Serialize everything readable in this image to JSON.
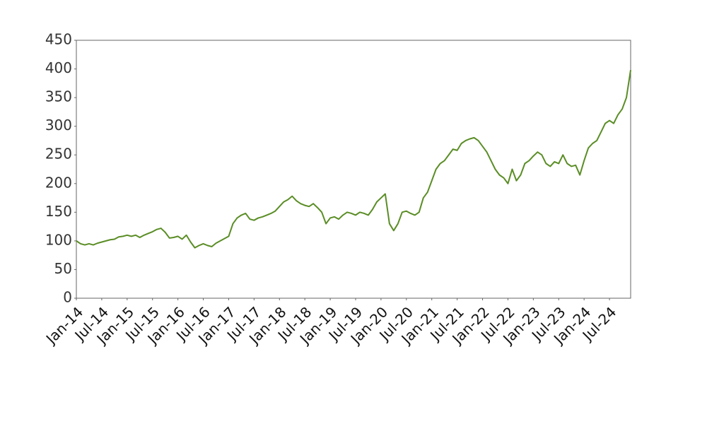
{
  "chart_data": {
    "type": "line",
    "x": [
      "2014-01",
      "2014-02",
      "2014-03",
      "2014-04",
      "2014-05",
      "2014-06",
      "2014-07",
      "2014-08",
      "2014-09",
      "2014-10",
      "2014-11",
      "2014-12",
      "2015-01",
      "2015-02",
      "2015-03",
      "2015-04",
      "2015-05",
      "2015-06",
      "2015-07",
      "2015-08",
      "2015-09",
      "2015-10",
      "2015-11",
      "2015-12",
      "2016-01",
      "2016-02",
      "2016-03",
      "2016-04",
      "2016-05",
      "2016-06",
      "2016-07",
      "2016-08",
      "2016-09",
      "2016-10",
      "2016-11",
      "2016-12",
      "2017-01",
      "2017-02",
      "2017-03",
      "2017-04",
      "2017-05",
      "2017-06",
      "2017-07",
      "2017-08",
      "2017-09",
      "2017-10",
      "2017-11",
      "2017-12",
      "2018-01",
      "2018-02",
      "2018-03",
      "2018-04",
      "2018-05",
      "2018-06",
      "2018-07",
      "2018-08",
      "2018-09",
      "2018-10",
      "2018-11",
      "2018-12",
      "2019-01",
      "2019-02",
      "2019-03",
      "2019-04",
      "2019-05",
      "2019-06",
      "2019-07",
      "2019-08",
      "2019-09",
      "2019-10",
      "2019-11",
      "2019-12",
      "2020-01",
      "2020-02",
      "2020-03",
      "2020-04",
      "2020-05",
      "2020-06",
      "2020-07",
      "2020-08",
      "2020-09",
      "2020-10",
      "2020-11",
      "2020-12",
      "2021-01",
      "2021-02",
      "2021-03",
      "2021-04",
      "2021-05",
      "2021-06",
      "2021-07",
      "2021-08",
      "2021-09",
      "2021-10",
      "2021-11",
      "2021-12",
      "2022-01",
      "2022-02",
      "2022-03",
      "2022-04",
      "2022-05",
      "2022-06",
      "2022-07",
      "2022-08",
      "2022-09",
      "2022-10",
      "2022-11",
      "2022-12",
      "2023-01",
      "2023-02",
      "2023-03",
      "2023-04",
      "2023-05",
      "2023-06",
      "2023-07",
      "2023-08",
      "2023-09",
      "2023-10",
      "2023-11",
      "2023-12",
      "2024-01",
      "2024-02",
      "2024-03",
      "2024-04",
      "2024-05",
      "2024-06",
      "2024-07",
      "2024-08",
      "2024-09",
      "2024-10",
      "2024-11",
      "2024-12"
    ],
    "series": [
      {
        "color": "#5a8d25",
        "values": [
          100,
          95,
          93,
          95,
          93,
          96,
          98,
          100,
          102,
          103,
          107,
          108,
          110,
          108,
          110,
          106,
          110,
          113,
          116,
          120,
          122,
          115,
          105,
          106,
          108,
          103,
          110,
          98,
          88,
          92,
          95,
          92,
          90,
          96,
          100,
          104,
          108,
          130,
          140,
          145,
          148,
          138,
          136,
          140,
          142,
          145,
          148,
          152,
          160,
          168,
          172,
          178,
          170,
          165,
          162,
          160,
          165,
          158,
          150,
          130,
          140,
          142,
          138,
          145,
          150,
          148,
          145,
          150,
          148,
          145,
          155,
          168,
          175,
          182,
          130,
          118,
          130,
          150,
          152,
          148,
          145,
          150,
          175,
          185,
          205,
          225,
          235,
          240,
          250,
          260,
          258,
          270,
          275,
          278,
          280,
          275,
          265,
          255,
          240,
          225,
          215,
          210,
          200,
          225,
          205,
          215,
          235,
          240,
          248,
          255,
          250,
          235,
          230,
          238,
          235,
          250,
          235,
          230,
          232,
          215,
          240,
          262,
          270,
          275,
          290,
          305,
          310,
          305,
          320,
          330,
          350,
          398
        ]
      }
    ],
    "xlim": [
      "2014-01",
      "2024-12"
    ],
    "xticks": [
      {
        "value": "2014-01",
        "label": "Jan-14"
      },
      {
        "value": "2014-07",
        "label": "Jul-14"
      },
      {
        "value": "2015-01",
        "label": "Jan-15"
      },
      {
        "value": "2015-07",
        "label": "Jul-15"
      },
      {
        "value": "2016-01",
        "label": "Jan-16"
      },
      {
        "value": "2016-07",
        "label": "Jul-16"
      },
      {
        "value": "2017-01",
        "label": "Jan-17"
      },
      {
        "value": "2017-07",
        "label": "Jul-17"
      },
      {
        "value": "2018-01",
        "label": "Jan-18"
      },
      {
        "value": "2018-07",
        "label": "Jul-18"
      },
      {
        "value": "2019-01",
        "label": "Jan-19"
      },
      {
        "value": "2019-07",
        "label": "Jul-19"
      },
      {
        "value": "2020-01",
        "label": "Jan-20"
      },
      {
        "value": "2020-07",
        "label": "Jul-20"
      },
      {
        "value": "2021-01",
        "label": "Jan-21"
      },
      {
        "value": "2021-07",
        "label": "Jul-21"
      },
      {
        "value": "2022-01",
        "label": "Jan-22"
      },
      {
        "value": "2022-07",
        "label": "Jul-22"
      },
      {
        "value": "2023-01",
        "label": "Jan-23"
      },
      {
        "value": "2023-07",
        "label": "Jul-23"
      },
      {
        "value": "2024-01",
        "label": "Jan-24"
      },
      {
        "value": "2024-07",
        "label": "Jul-24"
      }
    ],
    "ylim": [
      0,
      450
    ],
    "yticks": [
      0,
      50,
      100,
      150,
      200,
      250,
      300,
      350,
      400,
      450
    ],
    "grid": false
  }
}
